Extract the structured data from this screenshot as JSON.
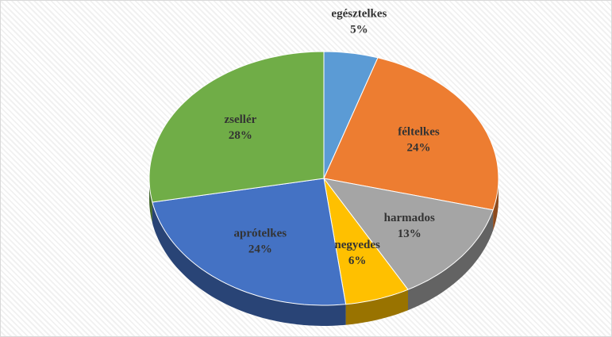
{
  "chart_data": {
    "type": "pie",
    "categories": [
      "egésztelkes",
      "féltelkes",
      "harmados",
      "negyedes",
      "aprótelkes",
      "zsellér"
    ],
    "values": [
      5,
      24,
      13,
      6,
      24,
      28
    ],
    "value_labels": [
      "5%",
      "24%",
      "13%",
      "6%",
      "24%",
      "28%"
    ],
    "colors": [
      "#5b9bd5",
      "#ed7d31",
      "#a5a5a5",
      "#ffc000",
      "#4472c4",
      "#70ad47"
    ]
  }
}
